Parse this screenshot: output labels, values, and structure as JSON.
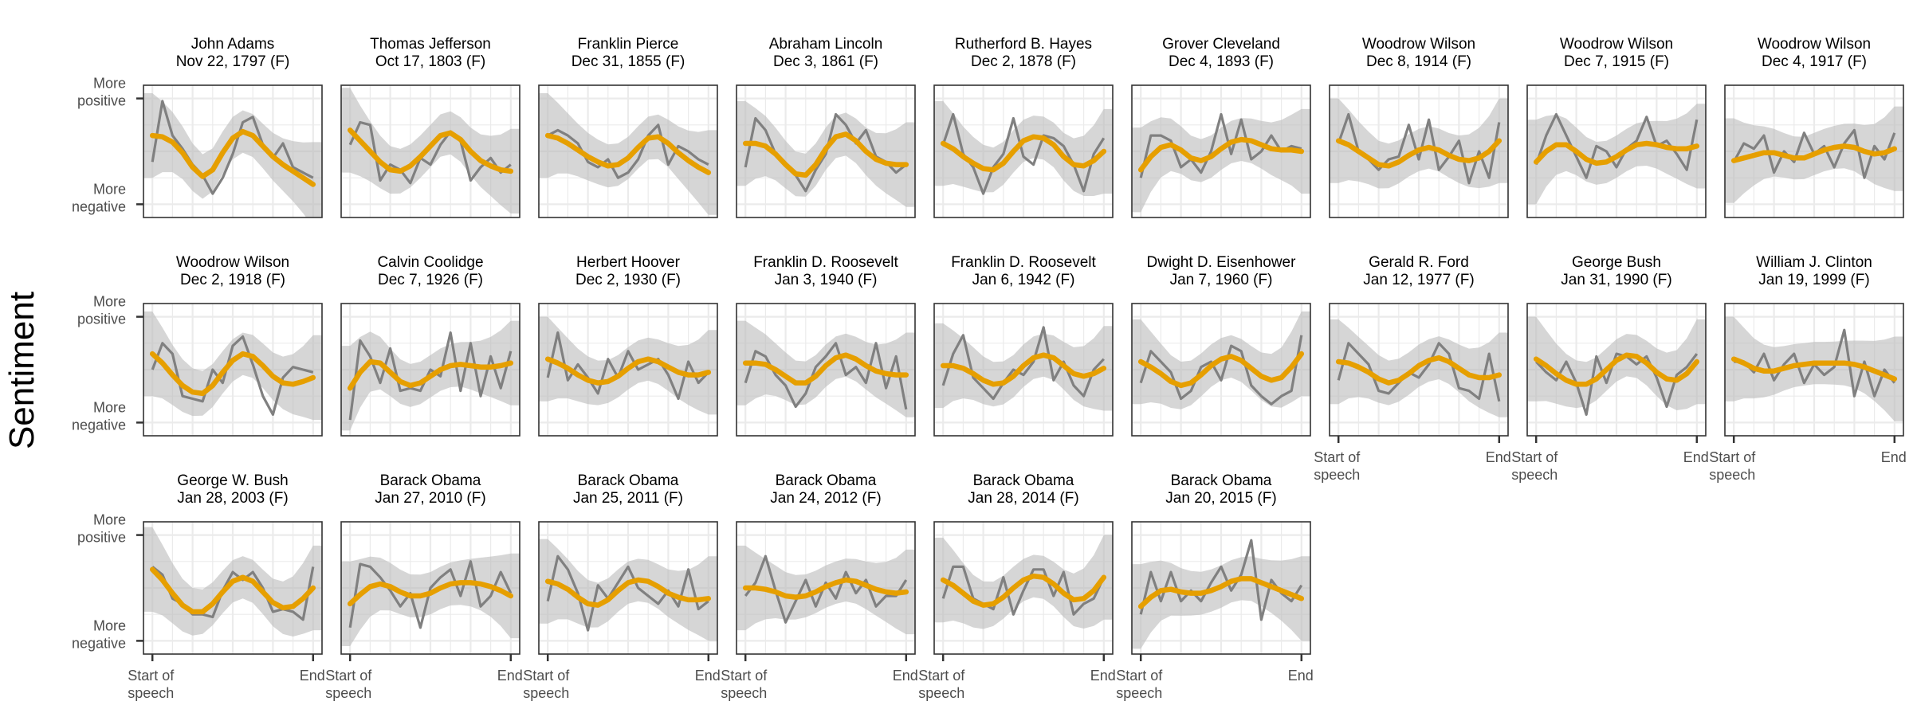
{
  "chart_data": {
    "type": "line",
    "ylabel": "Sentiment",
    "x_ticks": [
      "Start of\nspeech",
      "End"
    ],
    "y_ticks": [
      "More\npositive",
      "More\nnegative"
    ],
    "colors": {
      "raw": "#808080",
      "smooth": "#E69F00",
      "band": "#bdbdbd",
      "grid": "#ebebeb",
      "frame": "#333333"
    },
    "panels": [
      {
        "title": "John Adams\nNov 22, 1797 (F)",
        "raw": [
          0.42,
          0.88,
          0.62,
          0.52,
          0.4,
          0.32,
          0.18,
          0.3,
          0.48,
          0.72,
          0.76,
          0.55,
          0.45,
          0.56,
          0.38,
          0.34,
          0.3
        ],
        "smooth": [
          0.62,
          0.61,
          0.57,
          0.49,
          0.38,
          0.31,
          0.36,
          0.49,
          0.6,
          0.65,
          0.62,
          0.54,
          0.46,
          0.4,
          0.35,
          0.3,
          0.25
        ]
      },
      {
        "title": "Thomas Jefferson\nOct 17, 1803 (F)",
        "raw": [
          0.55,
          0.72,
          0.7,
          0.28,
          0.4,
          0.36,
          0.26,
          0.45,
          0.4,
          0.55,
          0.65,
          0.58,
          0.28,
          0.38,
          0.45,
          0.34,
          0.4
        ],
        "smooth": [
          0.66,
          0.58,
          0.5,
          0.42,
          0.36,
          0.35,
          0.39,
          0.46,
          0.54,
          0.62,
          0.64,
          0.59,
          0.5,
          0.43,
          0.39,
          0.36,
          0.35
        ]
      },
      {
        "title": "Franklin Pierce\nDec 31, 1855 (F)",
        "raw": [
          0.62,
          0.66,
          0.62,
          0.56,
          0.42,
          0.38,
          0.44,
          0.3,
          0.34,
          0.44,
          0.62,
          0.7,
          0.4,
          0.54,
          0.5,
          0.44,
          0.4
        ],
        "smooth": [
          0.62,
          0.6,
          0.56,
          0.51,
          0.46,
          0.42,
          0.39,
          0.4,
          0.45,
          0.53,
          0.6,
          0.61,
          0.56,
          0.49,
          0.43,
          0.38,
          0.34
        ]
      },
      {
        "title": "Abraham Lincoln\nDec  3, 1861 (F)",
        "raw": [
          0.38,
          0.75,
          0.66,
          0.48,
          0.4,
          0.32,
          0.2,
          0.36,
          0.48,
          0.78,
          0.7,
          0.56,
          0.66,
          0.46,
          0.42,
          0.34,
          0.4
        ],
        "smooth": [
          0.56,
          0.56,
          0.54,
          0.48,
          0.4,
          0.33,
          0.32,
          0.4,
          0.52,
          0.61,
          0.63,
          0.58,
          0.5,
          0.44,
          0.41,
          0.4,
          0.4
        ]
      },
      {
        "title": "Rutherford B. Hayes\nDec  2, 1878 (F)",
        "raw": [
          0.55,
          0.78,
          0.48,
          0.38,
          0.18,
          0.38,
          0.48,
          0.75,
          0.46,
          0.4,
          0.62,
          0.6,
          0.54,
          0.4,
          0.2,
          0.48,
          0.6
        ],
        "smooth": [
          0.56,
          0.52,
          0.46,
          0.41,
          0.37,
          0.36,
          0.41,
          0.5,
          0.58,
          0.61,
          0.6,
          0.55,
          0.46,
          0.4,
          0.39,
          0.43,
          0.5
        ]
      },
      {
        "title": "Grover Cleveland\nDec  4, 1893 (F)",
        "raw": [
          0.3,
          0.62,
          0.62,
          0.58,
          0.38,
          0.44,
          0.34,
          0.5,
          0.78,
          0.48,
          0.74,
          0.44,
          0.5,
          0.62,
          0.5,
          0.54,
          0.52
        ],
        "smooth": [
          0.36,
          0.46,
          0.53,
          0.55,
          0.51,
          0.45,
          0.43,
          0.46,
          0.52,
          0.57,
          0.59,
          0.58,
          0.55,
          0.52,
          0.51,
          0.51,
          0.5
        ]
      },
      {
        "title": "Woodrow Wilson\nDec  8, 1914 (F)",
        "raw": [
          0.56,
          0.78,
          0.5,
          0.44,
          0.36,
          0.44,
          0.46,
          0.7,
          0.44,
          0.74,
          0.36,
          0.46,
          0.58,
          0.26,
          0.5,
          0.3,
          0.72
        ],
        "smooth": [
          0.58,
          0.55,
          0.5,
          0.45,
          0.4,
          0.39,
          0.42,
          0.47,
          0.51,
          0.53,
          0.51,
          0.47,
          0.44,
          0.43,
          0.45,
          0.5,
          0.58
        ]
      },
      {
        "title": "Woodrow Wilson\nDec  7, 1915 (F)",
        "raw": [
          0.4,
          0.62,
          0.78,
          0.62,
          0.46,
          0.3,
          0.54,
          0.5,
          0.38,
          0.52,
          0.58,
          0.76,
          0.54,
          0.58,
          0.48,
          0.36,
          0.74
        ],
        "smooth": [
          0.42,
          0.5,
          0.55,
          0.55,
          0.5,
          0.44,
          0.41,
          0.42,
          0.46,
          0.51,
          0.55,
          0.56,
          0.55,
          0.53,
          0.52,
          0.52,
          0.54
        ]
      },
      {
        "title": "Woodrow Wilson\nDec  4, 1917 (F)",
        "raw": [
          0.42,
          0.56,
          0.52,
          0.62,
          0.34,
          0.5,
          0.42,
          0.64,
          0.48,
          0.54,
          0.38,
          0.56,
          0.66,
          0.3,
          0.54,
          0.44,
          0.64
        ],
        "smooth": [
          0.43,
          0.45,
          0.47,
          0.49,
          0.49,
          0.47,
          0.45,
          0.45,
          0.48,
          0.51,
          0.53,
          0.54,
          0.53,
          0.5,
          0.48,
          0.49,
          0.52
        ]
      },
      {
        "title": "Woodrow Wilson\nDec  2, 1918 (F)",
        "raw": [
          0.5,
          0.7,
          0.62,
          0.3,
          0.28,
          0.26,
          0.5,
          0.4,
          0.68,
          0.75,
          0.54,
          0.3,
          0.16,
          0.44,
          0.52,
          0.5,
          0.48
        ],
        "smooth": [
          0.62,
          0.55,
          0.46,
          0.38,
          0.33,
          0.32,
          0.38,
          0.48,
          0.57,
          0.62,
          0.6,
          0.53,
          0.45,
          0.4,
          0.39,
          0.41,
          0.44
        ]
      },
      {
        "title": "Calvin Coolidge\nDec  7, 1926 (F)",
        "raw": [
          0.12,
          0.72,
          0.6,
          0.4,
          0.66,
          0.34,
          0.36,
          0.34,
          0.5,
          0.45,
          0.78,
          0.34,
          0.7,
          0.3,
          0.6,
          0.36,
          0.64
        ],
        "smooth": [
          0.36,
          0.48,
          0.56,
          0.55,
          0.48,
          0.41,
          0.38,
          0.4,
          0.45,
          0.5,
          0.53,
          0.54,
          0.53,
          0.52,
          0.52,
          0.53,
          0.55
        ]
      },
      {
        "title": "Herbert Hoover\nDec  2, 1930 (F)",
        "raw": [
          0.44,
          0.78,
          0.42,
          0.54,
          0.44,
          0.32,
          0.58,
          0.44,
          0.64,
          0.5,
          0.54,
          0.58,
          0.46,
          0.28,
          0.56,
          0.4,
          0.48
        ],
        "smooth": [
          0.58,
          0.55,
          0.51,
          0.46,
          0.42,
          0.4,
          0.41,
          0.45,
          0.51,
          0.56,
          0.58,
          0.56,
          0.52,
          0.48,
          0.46,
          0.46,
          0.48
        ]
      },
      {
        "title": "Franklin D. Roosevelt\nJan  3, 1940 (F)",
        "raw": [
          0.4,
          0.64,
          0.6,
          0.46,
          0.38,
          0.22,
          0.32,
          0.52,
          0.6,
          0.7,
          0.46,
          0.52,
          0.4,
          0.7,
          0.36,
          0.6,
          0.2
        ],
        "smooth": [
          0.55,
          0.55,
          0.54,
          0.5,
          0.45,
          0.4,
          0.4,
          0.45,
          0.53,
          0.59,
          0.61,
          0.58,
          0.53,
          0.49,
          0.47,
          0.46,
          0.46
        ]
      },
      {
        "title": "Franklin D. Roosevelt\nJan  6, 1942 (F)",
        "raw": [
          0.38,
          0.62,
          0.76,
          0.44,
          0.36,
          0.28,
          0.4,
          0.5,
          0.46,
          0.56,
          0.82,
          0.42,
          0.56,
          0.38,
          0.3,
          0.5,
          0.58
        ],
        "smooth": [
          0.53,
          0.53,
          0.51,
          0.47,
          0.42,
          0.39,
          0.4,
          0.45,
          0.53,
          0.59,
          0.61,
          0.59,
          0.53,
          0.47,
          0.45,
          0.47,
          0.51
        ]
      },
      {
        "title": "Dwight D. Eisenhower\nJan  7, 1960 (F)",
        "raw": [
          0.4,
          0.64,
          0.56,
          0.48,
          0.28,
          0.34,
          0.52,
          0.56,
          0.42,
          0.68,
          0.64,
          0.38,
          0.3,
          0.24,
          0.3,
          0.34,
          0.76
        ],
        "smooth": [
          0.56,
          0.52,
          0.47,
          0.41,
          0.38,
          0.4,
          0.46,
          0.53,
          0.58,
          0.6,
          0.57,
          0.51,
          0.45,
          0.42,
          0.44,
          0.52,
          0.62
        ]
      },
      {
        "title": "Gerald R. Ford\nJan 12, 1977 (F)",
        "raw": [
          0.42,
          0.7,
          0.62,
          0.54,
          0.34,
          0.32,
          0.4,
          0.48,
          0.44,
          0.54,
          0.7,
          0.62,
          0.36,
          0.34,
          0.28,
          0.62,
          0.26
        ],
        "smooth": [
          0.56,
          0.55,
          0.52,
          0.48,
          0.43,
          0.4,
          0.42,
          0.47,
          0.53,
          0.57,
          0.59,
          0.56,
          0.51,
          0.46,
          0.44,
          0.44,
          0.46
        ]
      },
      {
        "title": "George Bush\nJan 31, 1990 (F)",
        "raw": [
          0.56,
          0.48,
          0.42,
          0.56,
          0.4,
          0.16,
          0.6,
          0.4,
          0.62,
          0.6,
          0.54,
          0.6,
          0.44,
          0.22,
          0.46,
          0.52,
          0.62
        ],
        "smooth": [
          0.58,
          0.53,
          0.47,
          0.42,
          0.39,
          0.39,
          0.43,
          0.5,
          0.57,
          0.61,
          0.6,
          0.55,
          0.48,
          0.43,
          0.42,
          0.47,
          0.56
        ]
      },
      {
        "title": "William J. Clinton\nJan 19, 1999 (F)",
        "raw": [
          0.56,
          0.56,
          0.48,
          0.62,
          0.42,
          0.54,
          0.62,
          0.4,
          0.54,
          0.46,
          0.52,
          0.8,
          0.3,
          0.56,
          0.3,
          0.5,
          0.4
        ],
        "smooth": [
          0.58,
          0.55,
          0.51,
          0.49,
          0.49,
          0.51,
          0.53,
          0.54,
          0.55,
          0.55,
          0.55,
          0.55,
          0.54,
          0.52,
          0.49,
          0.46,
          0.43
        ]
      },
      {
        "title": "George W. Bush\nJan 28, 2003 (F)",
        "raw": [
          0.66,
          0.6,
          0.42,
          0.38,
          0.3,
          0.3,
          0.28,
          0.48,
          0.62,
          0.56,
          0.62,
          0.5,
          0.32,
          0.34,
          0.32,
          0.26,
          0.66
        ],
        "smooth": [
          0.64,
          0.56,
          0.46,
          0.37,
          0.32,
          0.32,
          0.38,
          0.47,
          0.55,
          0.58,
          0.55,
          0.47,
          0.39,
          0.35,
          0.36,
          0.42,
          0.5
        ]
      },
      {
        "title": "Barack Obama\nJan 27, 2010 (F)",
        "raw": [
          0.2,
          0.68,
          0.66,
          0.58,
          0.48,
          0.36,
          0.46,
          0.2,
          0.5,
          0.58,
          0.64,
          0.44,
          0.7,
          0.36,
          0.44,
          0.62,
          0.46
        ],
        "smooth": [
          0.38,
          0.45,
          0.51,
          0.53,
          0.51,
          0.47,
          0.44,
          0.44,
          0.46,
          0.5,
          0.53,
          0.54,
          0.54,
          0.53,
          0.51,
          0.48,
          0.44
        ]
      },
      {
        "title": "Barack Obama\nJan 25, 2011 (F)",
        "raw": [
          0.4,
          0.74,
          0.64,
          0.46,
          0.18,
          0.52,
          0.42,
          0.54,
          0.66,
          0.5,
          0.44,
          0.38,
          0.48,
          0.36,
          0.64,
          0.34,
          0.4
        ],
        "smooth": [
          0.55,
          0.53,
          0.49,
          0.43,
          0.38,
          0.37,
          0.41,
          0.48,
          0.54,
          0.56,
          0.55,
          0.51,
          0.46,
          0.43,
          0.41,
          0.41,
          0.42
        ]
      },
      {
        "title": "Barack Obama\nJan 24, 2012 (F)",
        "raw": [
          0.44,
          0.54,
          0.74,
          0.48,
          0.24,
          0.4,
          0.56,
          0.36,
          0.54,
          0.42,
          0.62,
          0.46,
          0.56,
          0.36,
          0.44,
          0.44,
          0.56
        ],
        "smooth": [
          0.5,
          0.5,
          0.49,
          0.47,
          0.44,
          0.43,
          0.44,
          0.47,
          0.51,
          0.54,
          0.56,
          0.55,
          0.52,
          0.49,
          0.47,
          0.46,
          0.47
        ]
      },
      {
        "title": "Barack Obama\nJan 28, 2014 (F)",
        "raw": [
          0.42,
          0.66,
          0.66,
          0.42,
          0.38,
          0.34,
          0.58,
          0.3,
          0.48,
          0.64,
          0.64,
          0.44,
          0.62,
          0.3,
          0.38,
          0.42,
          0.58
        ],
        "smooth": [
          0.56,
          0.52,
          0.46,
          0.4,
          0.37,
          0.38,
          0.43,
          0.5,
          0.56,
          0.59,
          0.58,
          0.53,
          0.46,
          0.41,
          0.42,
          0.48,
          0.58
        ]
      },
      {
        "title": "Barack Obama\nJan 20, 2015 (F)",
        "raw": [
          0.3,
          0.62,
          0.4,
          0.62,
          0.4,
          0.48,
          0.4,
          0.54,
          0.66,
          0.48,
          0.6,
          0.86,
          0.26,
          0.56,
          0.46,
          0.4,
          0.52
        ],
        "smooth": [
          0.36,
          0.43,
          0.48,
          0.49,
          0.47,
          0.46,
          0.46,
          0.48,
          0.51,
          0.55,
          0.57,
          0.57,
          0.54,
          0.51,
          0.48,
          0.45,
          0.42
        ]
      }
    ]
  }
}
